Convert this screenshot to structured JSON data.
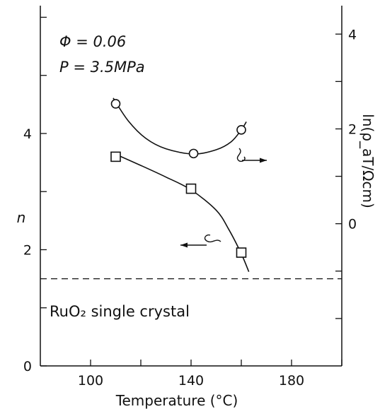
{
  "chart_data": {
    "type": "line",
    "xlabel": "Temperature (°C)",
    "ylabel": "n",
    "y2label": "ln(ρ_aT/Ωcm)",
    "xlim": [
      80,
      200
    ],
    "ylim": [
      0,
      6.2
    ],
    "y2lim": [
      -3.0,
      4.6
    ],
    "xticks": [
      100,
      140,
      180
    ],
    "yticks": [
      0,
      2,
      4
    ],
    "y2ticks": [
      0,
      2,
      4
    ],
    "grid": false,
    "annotations": {
      "phi": "Φ = 0.06",
      "pressure": "P = 3.5MPa",
      "reference": "RuO₂ single crystal"
    },
    "reference_line": {
      "label": "RuO₂ single crystal",
      "axis": "left",
      "y": 1.5,
      "style": "dashed"
    },
    "series": [
      {
        "axis": "left",
        "marker": "square",
        "x": [
          110,
          140,
          160
        ],
        "y": [
          3.6,
          3.05,
          1.95
        ],
        "curve_x": [
          108,
          120,
          130,
          140,
          150,
          155,
          160,
          163
        ],
        "curve_y": [
          3.68,
          3.45,
          3.25,
          3.03,
          2.68,
          2.35,
          1.93,
          1.62
        ]
      },
      {
        "axis": "right",
        "marker": "circle",
        "x": [
          110,
          141,
          160
        ],
        "y": [
          2.53,
          1.48,
          1.98
        ],
        "curve_x": [
          109,
          115,
          122,
          130,
          141,
          150,
          156,
          160,
          162
        ],
        "curve_y": [
          2.65,
          2.17,
          1.8,
          1.58,
          1.47,
          1.56,
          1.73,
          1.98,
          2.15
        ]
      }
    ],
    "arrows": [
      {
        "direction": "left",
        "axis": "left",
        "label_for": "n"
      },
      {
        "direction": "right",
        "axis": "right",
        "label_for": "ln(ρ_aT/Ωcm)"
      }
    ]
  }
}
